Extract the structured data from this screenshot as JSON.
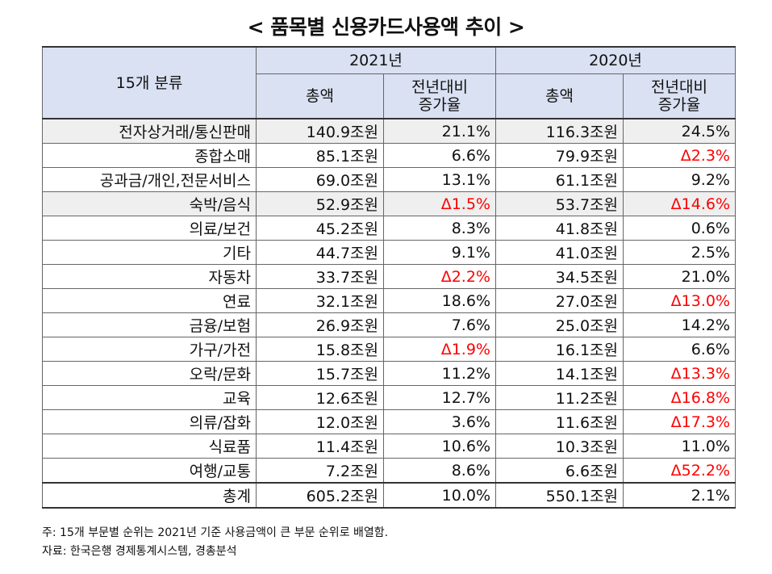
{
  "title": "< 품목별 신용카드사용액 추이 >",
  "header": {
    "category": "15개 분류",
    "years": [
      "2021년",
      "2020년"
    ],
    "total_label": "총액",
    "growth_label_line1": "전년대비",
    "growth_label_line2": "증가율"
  },
  "rows": [
    {
      "cat": "전자상거래/통신판매",
      "t2021": "140.9조원",
      "g2021": "21.1%",
      "t2020": "116.3조원",
      "g2020": "24.5%",
      "shade": true
    },
    {
      "cat": "종합소매",
      "t2021": "85.1조원",
      "g2021": "6.6%",
      "t2020": "79.9조원",
      "g2020": "Δ2.3%",
      "neg2020": true
    },
    {
      "cat": "공과금/개인,전문서비스",
      "t2021": "69.0조원",
      "g2021": "13.1%",
      "t2020": "61.1조원",
      "g2020": "9.2%"
    },
    {
      "cat": "숙박/음식",
      "t2021": "52.9조원",
      "g2021": "Δ1.5%",
      "t2020": "53.7조원",
      "g2020": "Δ14.6%",
      "shade": true,
      "neg2021": true,
      "neg2020": true
    },
    {
      "cat": "의료/보건",
      "t2021": "45.2조원",
      "g2021": "8.3%",
      "t2020": "41.8조원",
      "g2020": "0.6%"
    },
    {
      "cat": "기타",
      "t2021": "44.7조원",
      "g2021": "9.1%",
      "t2020": "41.0조원",
      "g2020": "2.5%"
    },
    {
      "cat": "자동차",
      "t2021": "33.7조원",
      "g2021": "Δ2.2%",
      "t2020": "34.5조원",
      "g2020": "21.0%",
      "neg2021": true
    },
    {
      "cat": "연료",
      "t2021": "32.1조원",
      "g2021": "18.6%",
      "t2020": "27.0조원",
      "g2020": "Δ13.0%",
      "neg2020": true
    },
    {
      "cat": "금융/보험",
      "t2021": "26.9조원",
      "g2021": "7.6%",
      "t2020": "25.0조원",
      "g2020": "14.2%"
    },
    {
      "cat": "가구/가전",
      "t2021": "15.8조원",
      "g2021": "Δ1.9%",
      "t2020": "16.1조원",
      "g2020": "6.6%",
      "neg2021": true
    },
    {
      "cat": "오락/문화",
      "t2021": "15.7조원",
      "g2021": "11.2%",
      "t2020": "14.1조원",
      "g2020": "Δ13.3%",
      "neg2020": true
    },
    {
      "cat": "교육",
      "t2021": "12.6조원",
      "g2021": "12.7%",
      "t2020": "11.2조원",
      "g2020": "Δ16.8%",
      "neg2020": true
    },
    {
      "cat": "의류/잡화",
      "t2021": "12.0조원",
      "g2021": "3.6%",
      "t2020": "11.6조원",
      "g2020": "Δ17.3%",
      "neg2020": true
    },
    {
      "cat": "식료품",
      "t2021": "11.4조원",
      "g2021": "10.6%",
      "t2020": "10.3조원",
      "g2020": "11.0%"
    },
    {
      "cat": "여행/교통",
      "t2021": "7.2조원",
      "g2021": "8.6%",
      "t2020": "6.6조원",
      "g2020": "Δ52.2%",
      "neg2020": true
    },
    {
      "cat": "총계",
      "t2021": "605.2조원",
      "g2021": "10.0%",
      "t2020": "550.1조원",
      "g2020": "2.1%",
      "total": true
    }
  ],
  "notes": {
    "note": "주: 15개 부문별 순위는 2021년 기준 사용금액이 큰 부문 순위로 배열함.",
    "source": "자료: 한국은행 경제통계시스템, 경총분석"
  },
  "colors": {
    "header_bg": "#d9e1f2",
    "shade_bg": "#efefef",
    "negative": "#ff0000"
  }
}
